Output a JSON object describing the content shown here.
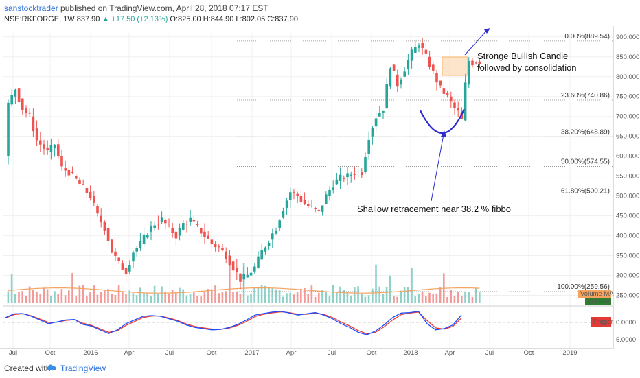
{
  "header": {
    "author": "sanstocktrader",
    "published_text": "published on TradingView.com, April 28, 2018 07:17 EST",
    "symbol": "NSE:RKFORGE, 1W",
    "last": "837.90",
    "change": "▲ +17.50 (+2.13%)",
    "ohlc": "O:825.00 H:844.90 L:802.05 C:837.90"
  },
  "footer": {
    "created_with": "Created with",
    "brand": "TradingView"
  },
  "colors": {
    "up": "#26a69a",
    "down": "#ef5350",
    "volume_ma": "#f4a460",
    "annotation": "#2c2ccf",
    "box": "#f7b56a",
    "stoch_k": "#1e4dff",
    "stoch_d": "#e53935"
  },
  "chart_data": {
    "type": "candlestick",
    "symbol": "NSE:RKFORGE",
    "interval": "1W",
    "price_axis_ticks": [
      250,
      300,
      350,
      400,
      450,
      500,
      550,
      600,
      650,
      700,
      750,
      800,
      850,
      900
    ],
    "price_range": [
      225,
      910
    ],
    "time_axis_labels": [
      "Jul",
      "Oct",
      "2016",
      "Apr",
      "Jul",
      "Oct",
      "2017",
      "Apr",
      "Jul",
      "Oct",
      "2018",
      "Apr",
      "Jul",
      "Oct",
      "2019"
    ],
    "fibonacci": [
      {
        "label": "0.00%(889.54)",
        "value": 889.54
      },
      {
        "label": "23.60%(740.86)",
        "value": 740.86
      },
      {
        "label": "38.20%(648.89)",
        "value": 648.89
      },
      {
        "label": "50.00%(574.55)",
        "value": 574.55
      },
      {
        "label": "61.80%(500.21)",
        "value": 500.21
      },
      {
        "label": "100.00%(259.56)",
        "value": 259.56
      }
    ],
    "price_path": [
      [
        0,
        600
      ],
      [
        1,
        730
      ],
      [
        3,
        770
      ],
      [
        5,
        720
      ],
      [
        7,
        700
      ],
      [
        9,
        640
      ],
      [
        12,
        610
      ],
      [
        14,
        630
      ],
      [
        16,
        570
      ],
      [
        18,
        560
      ],
      [
        20,
        540
      ],
      [
        22,
        520
      ],
      [
        24,
        500
      ],
      [
        26,
        450
      ],
      [
        28,
        420
      ],
      [
        30,
        360
      ],
      [
        32,
        330
      ],
      [
        34,
        310
      ],
      [
        36,
        360
      ],
      [
        38,
        380
      ],
      [
        40,
        410
      ],
      [
        42,
        430
      ],
      [
        44,
        440
      ],
      [
        46,
        420
      ],
      [
        48,
        400
      ],
      [
        50,
        430
      ],
      [
        52,
        440
      ],
      [
        54,
        420
      ],
      [
        56,
        400
      ],
      [
        58,
        380
      ],
      [
        60,
        370
      ],
      [
        62,
        350
      ],
      [
        64,
        320
      ],
      [
        66,
        290
      ],
      [
        68,
        300
      ],
      [
        70,
        320
      ],
      [
        72,
        360
      ],
      [
        74,
        390
      ],
      [
        76,
        420
      ],
      [
        78,
        470
      ],
      [
        80,
        510
      ],
      [
        82,
        500
      ],
      [
        84,
        480
      ],
      [
        86,
        470
      ],
      [
        88,
        460
      ],
      [
        90,
        500
      ],
      [
        92,
        530
      ],
      [
        94,
        545
      ],
      [
        96,
        550
      ],
      [
        98,
        560
      ],
      [
        100,
        560
      ],
      [
        102,
        650
      ],
      [
        104,
        700
      ],
      [
        106,
        720
      ],
      [
        108,
        830
      ],
      [
        110,
        780
      ],
      [
        112,
        820
      ],
      [
        114,
        860
      ],
      [
        116,
        885
      ],
      [
        118,
        850
      ],
      [
        120,
        810
      ],
      [
        122,
        770
      ],
      [
        124,
        750
      ],
      [
        126,
        720
      ],
      [
        127,
        710
      ],
      [
        128,
        690
      ],
      [
        129,
        780
      ],
      [
        130,
        840
      ],
      [
        131,
        835
      ],
      [
        132,
        838
      ]
    ],
    "bars": 133,
    "volume_ma_label": "Volume MA",
    "volume_label": "Volume",
    "oscillator": {
      "label": "Trigger",
      "ticks": [
        "0.0000",
        "5.0000"
      ],
      "k": [
        20,
        35,
        36,
        25,
        10,
        -5,
        2,
        10,
        12,
        -8,
        -15,
        -30,
        -45,
        -30,
        -5,
        10,
        25,
        28,
        25,
        15,
        5,
        -10,
        -20,
        -25,
        -30,
        -28,
        -20,
        -8,
        10,
        30,
        36,
        42,
        45,
        38,
        30,
        35,
        40,
        30,
        15,
        -5,
        -20,
        -40,
        -50,
        -35,
        -10,
        20,
        38,
        40,
        45,
        -5,
        -30,
        -25,
        -10,
        30
      ],
      "d": [
        18,
        32,
        35,
        27,
        14,
        0,
        1,
        8,
        11,
        -3,
        -12,
        -26,
        -40,
        -34,
        -12,
        4,
        20,
        26,
        26,
        18,
        8,
        -6,
        -16,
        -22,
        -27,
        -28,
        -23,
        -12,
        4,
        24,
        33,
        39,
        43,
        40,
        33,
        33,
        38,
        33,
        20,
        2,
        -14,
        -33,
        -46,
        -40,
        -18,
        10,
        32,
        38,
        42,
        8,
        -22,
        -27,
        -16,
        18
      ]
    },
    "annotations": [
      {
        "text": "Stronge Bullish Candle"
      },
      {
        "text": "followed by consolidation"
      },
      {
        "text": "Shallow retracement near 38.2 % fibbo"
      }
    ]
  }
}
